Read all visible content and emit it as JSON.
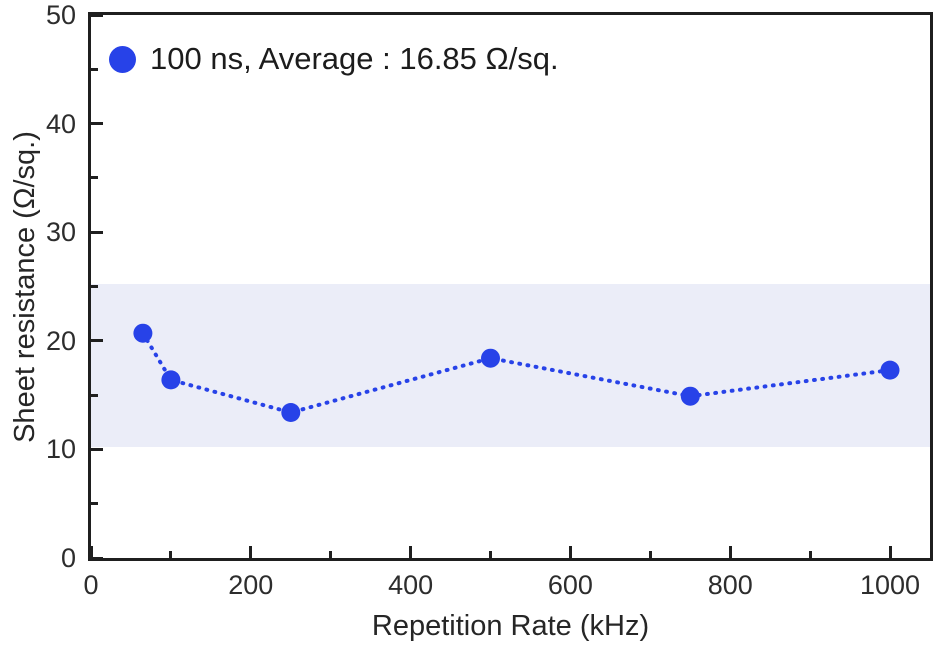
{
  "chart_data": {
    "type": "scatter",
    "title": "",
    "xlabel": "Repetition Rate (kHz)",
    "ylabel": "Sheet resistance (Ω/sq.)",
    "xlim": [
      0,
      1050
    ],
    "ylim": [
      0,
      50
    ],
    "grid": false,
    "legend_position": "upper-left",
    "legend_label": "100 ns, Average : 16.85 Ω/sq.",
    "average": 16.85,
    "series": [
      {
        "name": "100 ns",
        "x": [
          65,
          100,
          250,
          500,
          750,
          1000
        ],
        "y": [
          20.7,
          16.4,
          13.4,
          18.4,
          14.9,
          17.3
        ],
        "color": "#2742e8",
        "line_style": "dotted",
        "marker": "circle"
      }
    ],
    "band": {
      "ymin": 10.2,
      "ymax": 25.2,
      "color": "#ebedf8"
    },
    "x_major_ticks": [
      0,
      200,
      400,
      600,
      800,
      1000
    ],
    "x_minor_ticks": [
      100,
      300,
      500,
      700,
      900
    ],
    "y_major_ticks": [
      0,
      10,
      20,
      30,
      40,
      50
    ],
    "y_minor_ticks": [
      5,
      15,
      25,
      35,
      45
    ],
    "colors": {
      "series_blue": "#2742e8",
      "band_fill": "#ebedf8",
      "axis_line": "#1f1f1f",
      "tick_text": "#2d2d2d"
    }
  }
}
